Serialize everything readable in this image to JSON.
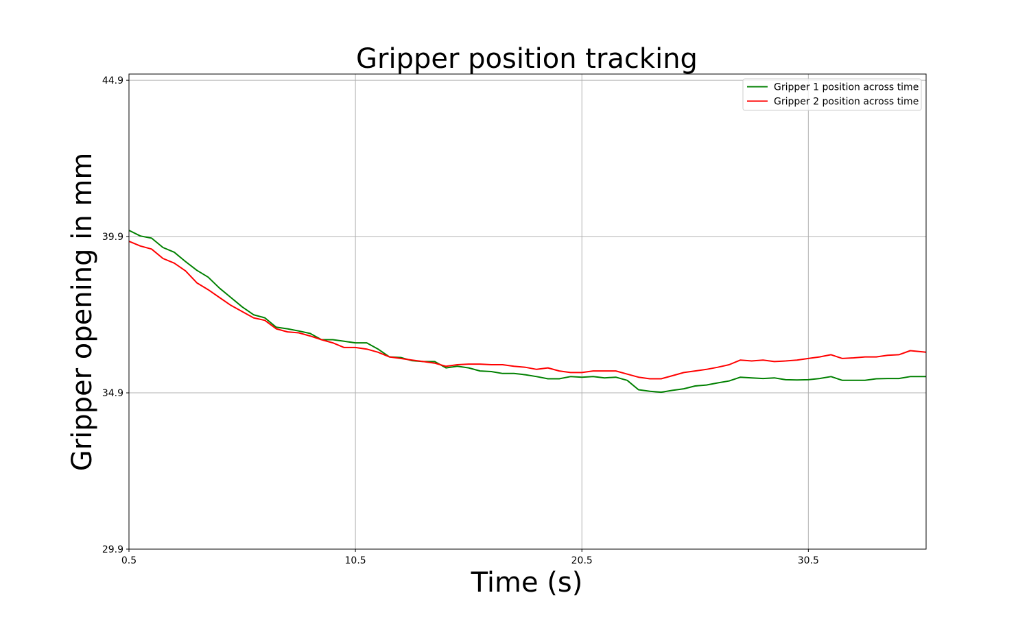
{
  "chart_data": {
    "type": "line",
    "title": "Gripper position tracking",
    "xlabel": "Time (s)",
    "ylabel": "Gripper opening in mm",
    "xlim": [
      0.5,
      35.7
    ],
    "ylim": [
      29.9,
      45.1
    ],
    "xticks": [
      0.5,
      10.5,
      20.5,
      30.5
    ],
    "xtick_labels": [
      "0.5",
      "10.5",
      "20.5",
      "30.5"
    ],
    "yticks": [
      29.9,
      34.9,
      39.9,
      44.9
    ],
    "ytick_labels": [
      "29.9",
      "34.9",
      "39.9",
      "44.9"
    ],
    "grid": true,
    "legend_position": "top-right",
    "series": [
      {
        "name": "Gripper 1 position across time",
        "color": "#008000",
        "points": [
          [
            0.5,
            40.1
          ],
          [
            1.0,
            39.92
          ],
          [
            1.5,
            39.85
          ],
          [
            2.0,
            39.55
          ],
          [
            2.5,
            39.4
          ],
          [
            3.0,
            39.1
          ],
          [
            3.5,
            38.82
          ],
          [
            4.0,
            38.6
          ],
          [
            4.5,
            38.25
          ],
          [
            5.0,
            37.95
          ],
          [
            5.5,
            37.65
          ],
          [
            6.0,
            37.4
          ],
          [
            6.5,
            37.3
          ],
          [
            7.0,
            37.0
          ],
          [
            7.5,
            36.95
          ],
          [
            8.0,
            36.88
          ],
          [
            8.5,
            36.8
          ],
          [
            9.0,
            36.6
          ],
          [
            9.5,
            36.6
          ],
          [
            10.0,
            36.55
          ],
          [
            10.5,
            36.5
          ],
          [
            11.0,
            36.5
          ],
          [
            11.5,
            36.3
          ],
          [
            12.0,
            36.05
          ],
          [
            12.5,
            36.03
          ],
          [
            13.0,
            35.93
          ],
          [
            13.5,
            35.9
          ],
          [
            14.0,
            35.9
          ],
          [
            14.5,
            35.7
          ],
          [
            15.0,
            35.75
          ],
          [
            15.5,
            35.7
          ],
          [
            16.0,
            35.6
          ],
          [
            16.5,
            35.58
          ],
          [
            17.0,
            35.52
          ],
          [
            17.5,
            35.52
          ],
          [
            18.0,
            35.48
          ],
          [
            18.5,
            35.42
          ],
          [
            19.0,
            35.35
          ],
          [
            19.5,
            35.35
          ],
          [
            20.0,
            35.42
          ],
          [
            20.5,
            35.4
          ],
          [
            21.0,
            35.42
          ],
          [
            21.5,
            35.38
          ],
          [
            22.0,
            35.4
          ],
          [
            22.5,
            35.3
          ],
          [
            23.0,
            35.0
          ],
          [
            23.5,
            34.95
          ],
          [
            24.0,
            34.92
          ],
          [
            24.5,
            34.98
          ],
          [
            25.0,
            35.03
          ],
          [
            25.5,
            35.12
          ],
          [
            26.0,
            35.15
          ],
          [
            26.5,
            35.22
          ],
          [
            27.0,
            35.28
          ],
          [
            27.5,
            35.4
          ],
          [
            28.0,
            35.38
          ],
          [
            28.5,
            35.36
          ],
          [
            29.0,
            35.38
          ],
          [
            29.5,
            35.32
          ],
          [
            30.0,
            35.31
          ],
          [
            30.5,
            35.32
          ],
          [
            31.0,
            35.36
          ],
          [
            31.5,
            35.42
          ],
          [
            32.0,
            35.3
          ],
          [
            32.5,
            35.3
          ],
          [
            33.0,
            35.3
          ],
          [
            33.5,
            35.35
          ],
          [
            34.0,
            35.36
          ],
          [
            34.5,
            35.36
          ],
          [
            35.0,
            35.42
          ],
          [
            35.7,
            35.42
          ]
        ]
      },
      {
        "name": "Gripper 2 position across time",
        "color": "#ff0000",
        "points": [
          [
            0.5,
            39.75
          ],
          [
            1.0,
            39.6
          ],
          [
            1.5,
            39.5
          ],
          [
            2.0,
            39.2
          ],
          [
            2.5,
            39.05
          ],
          [
            3.0,
            38.8
          ],
          [
            3.5,
            38.42
          ],
          [
            4.0,
            38.2
          ],
          [
            4.5,
            37.95
          ],
          [
            5.0,
            37.7
          ],
          [
            5.5,
            37.5
          ],
          [
            6.0,
            37.3
          ],
          [
            6.5,
            37.22
          ],
          [
            7.0,
            36.95
          ],
          [
            7.5,
            36.85
          ],
          [
            8.0,
            36.82
          ],
          [
            8.5,
            36.72
          ],
          [
            9.0,
            36.6
          ],
          [
            9.5,
            36.5
          ],
          [
            10.0,
            36.35
          ],
          [
            10.5,
            36.35
          ],
          [
            11.0,
            36.3
          ],
          [
            11.5,
            36.2
          ],
          [
            12.0,
            36.05
          ],
          [
            12.5,
            36.0
          ],
          [
            13.0,
            35.95
          ],
          [
            13.5,
            35.9
          ],
          [
            14.0,
            35.85
          ],
          [
            14.5,
            35.75
          ],
          [
            15.0,
            35.8
          ],
          [
            15.5,
            35.82
          ],
          [
            16.0,
            35.82
          ],
          [
            16.5,
            35.8
          ],
          [
            17.0,
            35.8
          ],
          [
            17.5,
            35.75
          ],
          [
            18.0,
            35.72
          ],
          [
            18.5,
            35.65
          ],
          [
            19.0,
            35.7
          ],
          [
            19.5,
            35.6
          ],
          [
            20.0,
            35.55
          ],
          [
            20.5,
            35.55
          ],
          [
            21.0,
            35.6
          ],
          [
            21.5,
            35.6
          ],
          [
            22.0,
            35.6
          ],
          [
            22.5,
            35.5
          ],
          [
            23.0,
            35.4
          ],
          [
            23.5,
            35.35
          ],
          [
            24.0,
            35.35
          ],
          [
            24.5,
            35.45
          ],
          [
            25.0,
            35.55
          ],
          [
            25.5,
            35.6
          ],
          [
            26.0,
            35.65
          ],
          [
            26.5,
            35.72
          ],
          [
            27.0,
            35.8
          ],
          [
            27.5,
            35.95
          ],
          [
            28.0,
            35.92
          ],
          [
            28.5,
            35.95
          ],
          [
            29.0,
            35.9
          ],
          [
            29.5,
            35.92
          ],
          [
            30.0,
            35.95
          ],
          [
            30.5,
            36.0
          ],
          [
            31.0,
            36.05
          ],
          [
            31.5,
            36.12
          ],
          [
            32.0,
            36.0
          ],
          [
            32.5,
            36.02
          ],
          [
            33.0,
            36.05
          ],
          [
            33.5,
            36.05
          ],
          [
            34.0,
            36.1
          ],
          [
            34.5,
            36.12
          ],
          [
            35.0,
            36.25
          ],
          [
            35.7,
            36.2
          ]
        ]
      }
    ]
  }
}
